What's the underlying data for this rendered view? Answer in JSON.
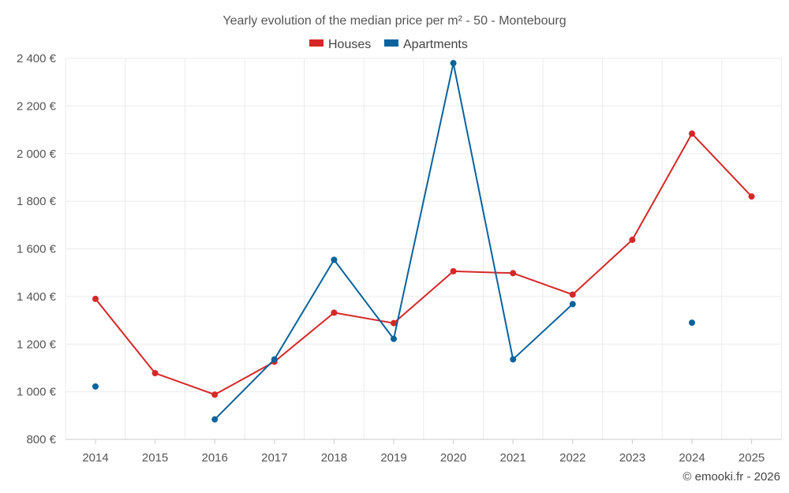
{
  "chart_data": {
    "type": "line",
    "title": "Yearly evolution of the median price per m² - 50 - Montebourg",
    "categories": [
      "2014",
      "2015",
      "2016",
      "2017",
      "2018",
      "2019",
      "2020",
      "2021",
      "2022",
      "2023",
      "2024",
      "2025"
    ],
    "series": [
      {
        "name": "Houses",
        "color": "#d62728",
        "values": [
          1390,
          1078,
          988,
          1126,
          1332,
          1288,
          1506,
          1498,
          1408,
          1638,
          2084,
          1820
        ]
      },
      {
        "name": "Apartments",
        "color": "#0a639c",
        "values": [
          1022,
          null,
          884,
          1136,
          1554,
          1222,
          2380,
          1136,
          1368,
          null,
          1290,
          null
        ]
      }
    ],
    "y_ticks": [
      "800 €",
      "1 000 €",
      "1 200 €",
      "1 400 €",
      "1 600 €",
      "1 800 €",
      "2 000 €",
      "2 200 €",
      "2 400 €"
    ],
    "ylim": [
      800,
      2400
    ],
    "grid": true,
    "legend": "top-center"
  },
  "credit": "© emooki.fr - 2026"
}
